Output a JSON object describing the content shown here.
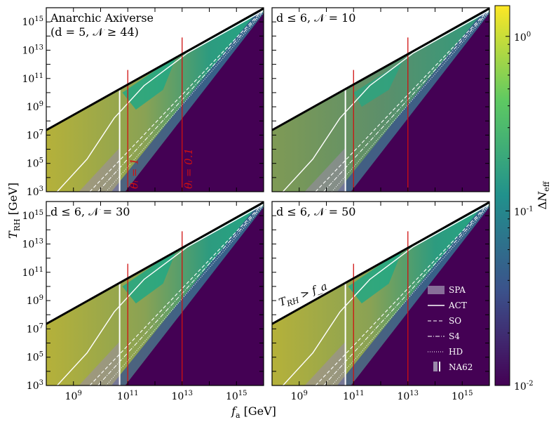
{
  "chart_data": [
    {
      "type": "heatmap",
      "title": "Anarchic Axiverse",
      "subtitle": "(d = 5, 𝒩 ≥ 44)",
      "xscale": "log",
      "yscale": "log",
      "xlim": [
        100000000.0,
        1e+16
      ],
      "ylim": [
        1000.0,
        1e+16
      ],
      "annotations": [
        "θᵢ = 1",
        "θᵢ = 0.1"
      ]
    },
    {
      "type": "heatmap",
      "title": "d ≤ 6, 𝒩 = 10",
      "xscale": "log",
      "yscale": "log",
      "xlim": [
        100000000.0,
        1e+16
      ],
      "ylim": [
        1000.0,
        1e+16
      ]
    },
    {
      "type": "heatmap",
      "title": "d ≤ 6, 𝒩 = 30",
      "xscale": "log",
      "yscale": "log",
      "xlim": [
        100000000.0,
        1e+16
      ],
      "ylim": [
        1000.0,
        1e+16
      ]
    },
    {
      "type": "heatmap",
      "title": "d ≤ 6, 𝒩 = 50",
      "xscale": "log",
      "yscale": "log",
      "xlim": [
        100000000.0,
        1e+16
      ],
      "ylim": [
        1000.0,
        1e+16
      ],
      "annotations": [
        "T_RH > f_a"
      ]
    }
  ],
  "axes": {
    "xlabel": "f_a [GeV]",
    "ylabel": "T_RH [GeV]",
    "x_ticks": [
      9,
      11,
      13,
      15
    ],
    "y_ticks": [
      3,
      5,
      7,
      9,
      11,
      13,
      15
    ],
    "x_tick_labels": [
      "10^9",
      "10^11",
      "10^13",
      "10^15"
    ],
    "y_tick_labels": [
      "10^3",
      "10^5",
      "10^7",
      "10^9",
      "10^11",
      "10^13",
      "10^15"
    ]
  },
  "colorbar": {
    "label": "ΔN_eff",
    "scale": "log",
    "range": [
      0.01,
      1.5
    ],
    "tick_labels": [
      "10^0",
      "10^-1",
      "10^-2"
    ],
    "colormap": [
      "#440154",
      "#3b528b",
      "#21918c",
      "#5ec962",
      "#fde725"
    ]
  },
  "legend": {
    "placement": "lower-right",
    "entries": [
      "SPA",
      "ACT",
      "SO",
      "S4",
      "HD",
      "NA62"
    ]
  },
  "reference_lines": {
    "white_vertical_x": 10.7,
    "red_vertical_x": [
      11.0,
      13.0
    ]
  }
}
